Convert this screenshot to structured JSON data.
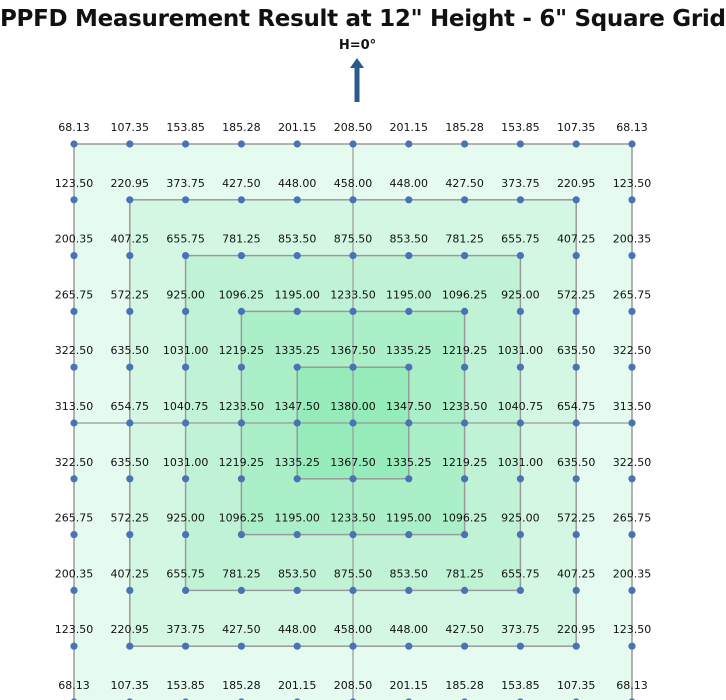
{
  "header": {
    "title": "PPFD Measurement Result at 12\" Height - 6\" Square Grid",
    "direction_label": "H=0°"
  },
  "colors": {
    "ring_fills": [
      "#e6fbef",
      "#d3f7e2",
      "#c0f3d6",
      "#abefc8",
      "#96ebba"
    ],
    "ring_stroke": "#9a9a9a",
    "point": "#4a73b5",
    "arrow": "#2d5a8c"
  },
  "chart_data": {
    "type": "heatmap",
    "title": "PPFD Measurement Result at 12\" Height - 6\" Square Grid",
    "rows": 11,
    "cols": 11,
    "values": [
      [
        "68.13",
        "107.35",
        "153.85",
        "185.28",
        "201.15",
        "208.50",
        "201.15",
        "185.28",
        "153.85",
        "107.35",
        "68.13"
      ],
      [
        "123.50",
        "220.95",
        "373.75",
        "427.50",
        "448.00",
        "458.00",
        "448.00",
        "427.50",
        "373.75",
        "220.95",
        "123.50"
      ],
      [
        "200.35",
        "407.25",
        "655.75",
        "781.25",
        "853.50",
        "875.50",
        "853.50",
        "781.25",
        "655.75",
        "407.25",
        "200.35"
      ],
      [
        "265.75",
        "572.25",
        "925.00",
        "1096.25",
        "1195.00",
        "1233.50",
        "1195.00",
        "1096.25",
        "925.00",
        "572.25",
        "265.75"
      ],
      [
        "322.50",
        "635.50",
        "1031.00",
        "1219.25",
        "1335.25",
        "1367.50",
        "1335.25",
        "1219.25",
        "1031.00",
        "635.50",
        "322.50"
      ],
      [
        "313.50",
        "654.75",
        "1040.75",
        "1233.50",
        "1347.50",
        "1380.00",
        "1347.50",
        "1233.50",
        "1040.75",
        "654.75",
        "313.50"
      ],
      [
        "322.50",
        "635.50",
        "1031.00",
        "1219.25",
        "1335.25",
        "1367.50",
        "1335.25",
        "1219.25",
        "1031.00",
        "635.50",
        "322.50"
      ],
      [
        "265.75",
        "572.25",
        "925.00",
        "1096.25",
        "1195.00",
        "1233.50",
        "1195.00",
        "1096.25",
        "925.00",
        "572.25",
        "265.75"
      ],
      [
        "200.35",
        "407.25",
        "655.75",
        "781.25",
        "853.50",
        "875.50",
        "853.50",
        "781.25",
        "655.75",
        "407.25",
        "200.35"
      ],
      [
        "123.50",
        "220.95",
        "373.75",
        "427.50",
        "448.00",
        "458.00",
        "448.00",
        "427.50",
        "373.75",
        "220.95",
        "123.50"
      ],
      [
        "68.13",
        "107.35",
        "153.85",
        "185.28",
        "201.15",
        "208.50",
        "201.15",
        "185.28",
        "153.85",
        "107.35",
        "68.13"
      ]
    ]
  }
}
